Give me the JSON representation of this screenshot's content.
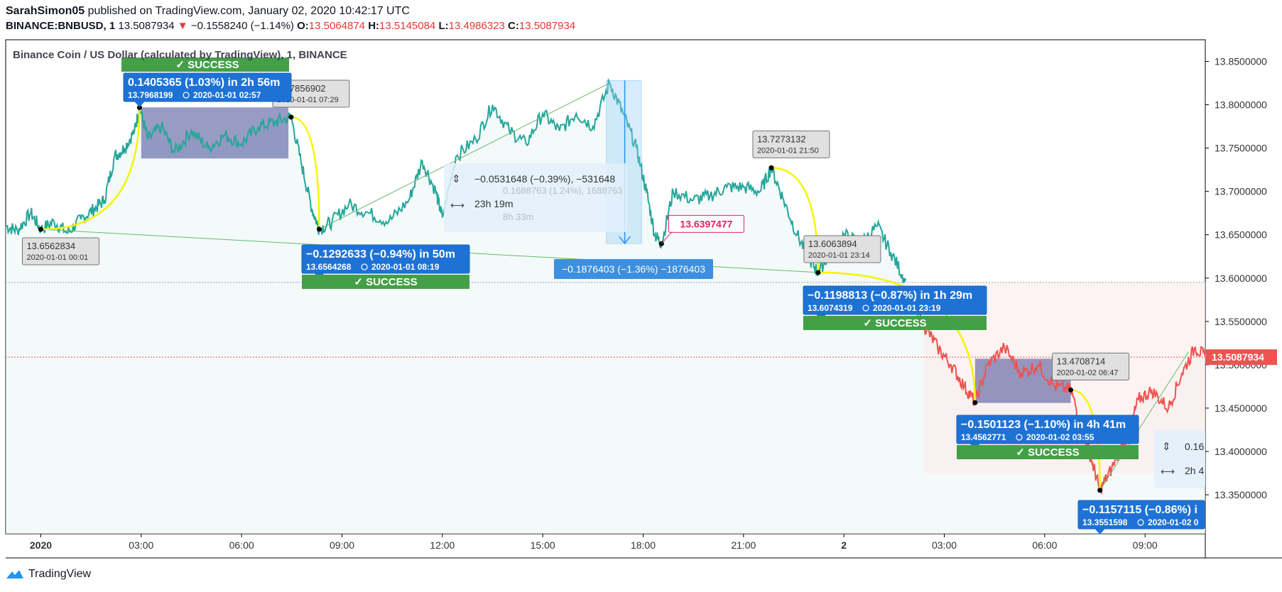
{
  "header": {
    "author": "SarahSimon05",
    "published_text": "published on TradingView.com, January 02, 2020 10:42:17 UTC",
    "symbol": "BINANCE:BNBUSD, 1",
    "last": "13.5087934",
    "change_arrow": "▼",
    "change": "−0.1558240 (−1.14%)",
    "o_label": "O:",
    "o": "13.5064874",
    "h_label": "H:",
    "h": "13.5145084",
    "l_label": "L:",
    "l": "13.4986323",
    "c_label": "C:",
    "c": "13.5087934"
  },
  "chart_data": {
    "type": "line",
    "title": "Binance Coin / US Dollar (calculated by TradingView), 1, BINANCE",
    "y_ticks": [
      "13.8500000",
      "13.8000000",
      "13.7500000",
      "13.7000000",
      "13.6500000",
      "13.6000000",
      "13.5500000",
      "13.5000000",
      "13.4500000",
      "13.4000000",
      "13.3500000"
    ],
    "y_tick_values": [
      13.85,
      13.8,
      13.75,
      13.7,
      13.65,
      13.6,
      13.55,
      13.5,
      13.45,
      13.4,
      13.35
    ],
    "ylim": [
      13.305,
      13.875
    ],
    "x_ticks": [
      "2020",
      "03:00",
      "06:00",
      "09:00",
      "12:00",
      "15:00",
      "18:00",
      "21:00",
      "2",
      "03:00",
      "06:00",
      "09:00"
    ],
    "x_tick_hours": [
      0,
      3,
      6,
      9,
      12,
      15,
      18,
      21,
      24,
      27,
      30,
      33
    ],
    "xlim_hours": [
      -1.05,
      34.8
    ],
    "last_price_label": "13.5087934",
    "last_price": 13.5087934,
    "reference_price": 13.595,
    "line_up_color": "#26a69a",
    "line_down_color": "#ef5350",
    "series": [
      {
        "values": [
          [
            -1.05,
            13.66
          ],
          [
            -0.7,
            13.655
          ],
          [
            -0.3,
            13.675
          ],
          [
            0,
            13.6563
          ],
          [
            0.4,
            13.665
          ],
          [
            0.8,
            13.652
          ],
          [
            1.2,
            13.668
          ],
          [
            1.6,
            13.68
          ],
          [
            1.9,
            13.69
          ],
          [
            2.2,
            13.74
          ],
          [
            2.5,
            13.75
          ],
          [
            2.8,
            13.77
          ],
          [
            2.95,
            13.7968
          ],
          [
            3.2,
            13.76
          ],
          [
            3.6,
            13.775
          ],
          [
            4.0,
            13.745
          ],
          [
            4.5,
            13.77
          ],
          [
            5.0,
            13.75
          ],
          [
            5.5,
            13.765
          ],
          [
            6.0,
            13.755
          ],
          [
            6.5,
            13.775
          ],
          [
            7.0,
            13.78
          ],
          [
            7.48,
            13.7857
          ],
          [
            7.8,
            13.73
          ],
          [
            8.1,
            13.68
          ],
          [
            8.32,
            13.6564
          ],
          [
            8.7,
            13.665
          ],
          [
            9.2,
            13.685
          ],
          [
            9.8,
            13.675
          ],
          [
            10.4,
            13.665
          ],
          [
            11.0,
            13.69
          ],
          [
            11.4,
            13.735
          ],
          [
            11.8,
            13.7
          ],
          [
            12.0,
            13.67
          ],
          [
            12.4,
            13.74
          ],
          [
            13.0,
            13.76
          ],
          [
            13.5,
            13.8
          ],
          [
            14.0,
            13.77
          ],
          [
            14.5,
            13.755
          ],
          [
            15.0,
            13.79
          ],
          [
            15.5,
            13.77
          ],
          [
            16.0,
            13.79
          ],
          [
            16.5,
            13.775
          ],
          [
            17.0,
            13.825
          ],
          [
            17.4,
            13.79
          ],
          [
            17.8,
            13.75
          ],
          [
            18.1,
            13.7
          ],
          [
            18.35,
            13.65
          ],
          [
            18.55,
            13.6397
          ],
          [
            18.9,
            13.7
          ],
          [
            19.5,
            13.69
          ],
          [
            20.0,
            13.695
          ],
          [
            20.5,
            13.705
          ],
          [
            21.0,
            13.705
          ],
          [
            21.5,
            13.7
          ],
          [
            21.83,
            13.7273
          ],
          [
            22.2,
            13.69
          ],
          [
            22.6,
            13.65
          ],
          [
            23.0,
            13.62
          ],
          [
            23.23,
            13.6064
          ],
          [
            23.6,
            13.63
          ],
          [
            24.0,
            13.65
          ],
          [
            24.5,
            13.64
          ],
          [
            25.0,
            13.66
          ],
          [
            25.4,
            13.63
          ],
          [
            25.8,
            13.6
          ],
          [
            26.0,
            13.57
          ],
          [
            26.4,
            13.545
          ],
          [
            26.8,
            13.52
          ],
          [
            27.2,
            13.5
          ],
          [
            27.6,
            13.475
          ],
          [
            27.92,
            13.4563
          ],
          [
            28.3,
            13.5
          ],
          [
            28.8,
            13.52
          ],
          [
            29.3,
            13.49
          ],
          [
            29.8,
            13.5
          ],
          [
            30.3,
            13.475
          ],
          [
            30.78,
            13.4709
          ],
          [
            31.1,
            13.43
          ],
          [
            31.4,
            13.39
          ],
          [
            31.65,
            13.3552
          ],
          [
            32.0,
            13.38
          ],
          [
            32.5,
            13.42
          ],
          [
            32.8,
            13.46
          ],
          [
            33.2,
            13.47
          ],
          [
            33.7,
            13.45
          ],
          [
            34.1,
            13.49
          ],
          [
            34.5,
            13.52
          ],
          [
            34.8,
            13.5088
          ]
        ]
      }
    ],
    "annotations": [
      {
        "text": "13.6562834",
        "sub": "2020-01-01 00:01",
        "kind": "callout",
        "t": 0,
        "v": 13.6563
      },
      {
        "text": "13.7856902",
        "sub": "2020-01-01 07:29",
        "kind": "callout",
        "t": 7.48,
        "v": 13.7857
      },
      {
        "text": "13.7273132",
        "sub": "2020-01-01 21:50",
        "kind": "callout",
        "t": 21.83,
        "v": 13.7273
      },
      {
        "text": "13.6063894",
        "sub": "2020-01-01 23:14",
        "kind": "callout",
        "t": 23.23,
        "v": 13.6064
      },
      {
        "text": "13.4708714",
        "sub": "2020-01-02 06:47",
        "kind": "callout",
        "t": 30.78,
        "v": 13.4709
      },
      {
        "text": "13.6397477",
        "kind": "pricelabel",
        "t": 18.55,
        "v": 13.6397
      }
    ],
    "stats": [
      {
        "main": "0.1405365 (1.03%) in 2h 56m",
        "sub_price": "13.7968199",
        "sub_time": "2020-01-01  02:57",
        "badge": "✓ SUCCESS",
        "badge_pos": "above",
        "t": 2.95,
        "v": 13.7968
      },
      {
        "main": "−0.1292633 (−0.94%) in 50m",
        "sub_price": "13.6564268",
        "sub_time": "2020-01-01  08:19",
        "badge": "✓ SUCCESS",
        "badge_pos": "below",
        "t": 8.32,
        "v": 13.6564
      },
      {
        "main": "−0.1198813 (−0.87%) in 1h 29m",
        "sub_price": "13.6074319",
        "sub_time": "2020-01-01  23:19",
        "badge": "✓ SUCCESS",
        "badge_pos": "below",
        "t": 23.32,
        "v": 13.6074
      },
      {
        "main": "−0.1501123 (−1.10%) in 4h 41m",
        "sub_price": "13.4562771",
        "sub_time": "2020-01-02  03:55",
        "badge": "✓ SUCCESS",
        "badge_pos": "below",
        "t": 27.92,
        "v": 13.4563
      },
      {
        "main": "−0.1157115 (−0.86%) i",
        "sub_price": "13.3551598",
        "sub_time": "2020-01-02  0",
        "badge": "",
        "badge_pos": "none",
        "t": 31.65,
        "v": 13.3552
      }
    ],
    "range_measure": {
      "label": "−0.1876403 (−1.36%) −1876403"
    },
    "info_box_1": {
      "line1": "−0.0531648 (−0.39%), −531648",
      "line2": "23h 19m",
      "ghost1": "0.1688763 (1.24%), 1688763",
      "ghost2": "8h 33m"
    },
    "info_box_2": {
      "line1": "0.16",
      "line2": "2h 4"
    }
  },
  "footer": {
    "brand": "TradingView",
    "logo_icon": "tradingview-logo-icon"
  }
}
